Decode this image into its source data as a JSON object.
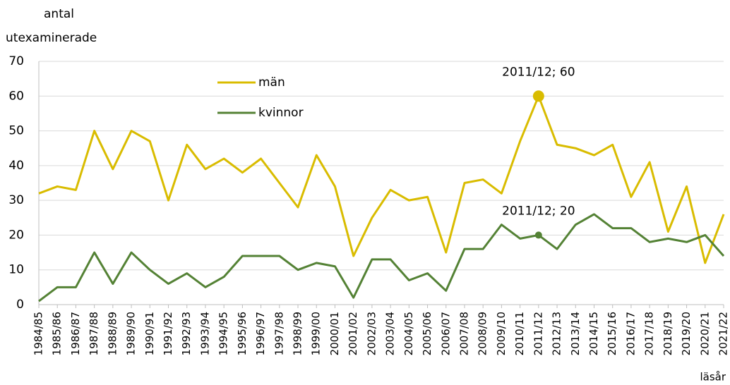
{
  "chart_data": {
    "type": "line",
    "ylabel": [
      "antal",
      "utexaminerade"
    ],
    "xlabel": "läsår",
    "categories": [
      "1984/85",
      "1985/86",
      "1986/87",
      "1987/88",
      "1988/89",
      "1989/90",
      "1990/91",
      "1991/92",
      "1992/93",
      "1993/94",
      "1994/95",
      "1995/96",
      "1996/97",
      "1997/98",
      "1998/99",
      "1999/00",
      "2000/01",
      "2001/02",
      "2002/03",
      "2003/04",
      "2004/05",
      "2005/06",
      "2006/07",
      "2007/08",
      "2008/09",
      "2009/10",
      "2010/11",
      "2011/12",
      "2012/13",
      "2013/14",
      "2014/15",
      "2015/16",
      "2016/17",
      "2017/18",
      "2018/19",
      "2019/20",
      "2020/21",
      "2021/22"
    ],
    "series": [
      {
        "name": "män",
        "color": "#d9bc00",
        "values": [
          32,
          34,
          33,
          50,
          39,
          50,
          47,
          30,
          46,
          39,
          42,
          38,
          42,
          35,
          28,
          43,
          34,
          14,
          25,
          33,
          30,
          31,
          15,
          35,
          36,
          32,
          47,
          60,
          46,
          45,
          43,
          46,
          31,
          41,
          21,
          34,
          12,
          26
        ]
      },
      {
        "name": "kvinnor",
        "color": "#548235",
        "values": [
          1,
          5,
          5,
          15,
          6,
          15,
          10,
          6,
          9,
          5,
          8,
          14,
          14,
          14,
          10,
          12,
          11,
          2,
          13,
          13,
          7,
          9,
          4,
          16,
          16,
          23,
          19,
          20,
          16,
          23,
          26,
          22,
          22,
          18,
          19,
          18,
          20,
          14
        ]
      }
    ],
    "annotations": [
      {
        "text": "2011/12; 60",
        "category": "2011/12",
        "series": "män"
      },
      {
        "text": "2011/12; 20",
        "category": "2011/12",
        "series": "kvinnor"
      }
    ],
    "ylim": [
      0,
      70
    ],
    "yticks": [
      0,
      10,
      20,
      30,
      40,
      50,
      60,
      70
    ],
    "grid": true
  }
}
